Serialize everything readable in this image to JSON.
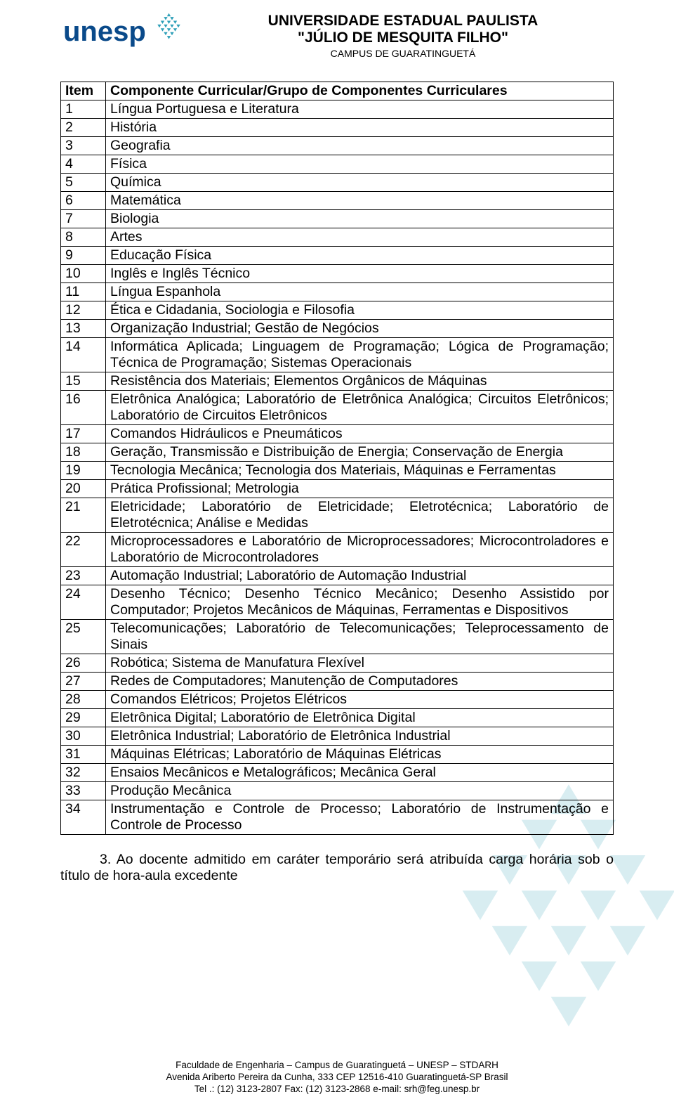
{
  "header": {
    "line1": "UNIVERSIDADE ESTADUAL PAULISTA",
    "line2": "\"JÚLIO DE MESQUITA FILHO\"",
    "line3": "CAMPUS DE GUARATINGUETÁ",
    "logo_text": "unesp",
    "logo_color": "#0a4a8a",
    "logo_accent": "#2d9fb8"
  },
  "table": {
    "header_item": "Item",
    "header_desc": "Componente Curricular/Grupo de Componentes Curriculares",
    "rows": [
      {
        "n": "1",
        "d": "Língua Portuguesa e Literatura"
      },
      {
        "n": "2",
        "d": "História"
      },
      {
        "n": "3",
        "d": "Geografia"
      },
      {
        "n": "4",
        "d": "Física"
      },
      {
        "n": "5",
        "d": "Química"
      },
      {
        "n": "6",
        "d": "Matemática"
      },
      {
        "n": "7",
        "d": "Biologia"
      },
      {
        "n": "8",
        "d": "Artes"
      },
      {
        "n": "9",
        "d": "Educação Física"
      },
      {
        "n": "10",
        "d": "Inglês e Inglês Técnico"
      },
      {
        "n": "11",
        "d": "Língua Espanhola"
      },
      {
        "n": "12",
        "d": "Ética e Cidadania, Sociologia e Filosofia"
      },
      {
        "n": "13",
        "d": "Organização Industrial; Gestão de Negócios"
      },
      {
        "n": "14",
        "d": "Informática Aplicada; Linguagem de Programação; Lógica de Programação; Técnica de Programação; Sistemas Operacionais"
      },
      {
        "n": "15",
        "d": "Resistência dos Materiais; Elementos Orgânicos de Máquinas"
      },
      {
        "n": "16",
        "d": "Eletrônica Analógica; Laboratório de Eletrônica Analógica; Circuitos Eletrônicos; Laboratório de Circuitos Eletrônicos"
      },
      {
        "n": "17",
        "d": "Comandos Hidráulicos e Pneumáticos"
      },
      {
        "n": "18",
        "d": "Geração, Transmissão e Distribuição de Energia; Conservação de Energia"
      },
      {
        "n": "19",
        "d": "Tecnologia Mecânica; Tecnologia dos Materiais, Máquinas e Ferramentas"
      },
      {
        "n": "20",
        "d": "Prática Profissional; Metrologia"
      },
      {
        "n": "21",
        "d": "Eletricidade; Laboratório de Eletricidade; Eletrotécnica; Laboratório de Eletrotécnica; Análise e Medidas"
      },
      {
        "n": "22",
        "d": "Microprocessadores e Laboratório de Microprocessadores; Microcontroladores e Laboratório de Microcontroladores"
      },
      {
        "n": "23",
        "d": "Automação Industrial; Laboratório de Automação Industrial"
      },
      {
        "n": "24",
        "d": "Desenho Técnico; Desenho Técnico Mecânico; Desenho Assistido por Computador; Projetos Mecânicos de Máquinas, Ferramentas e Dispositivos"
      },
      {
        "n": "25",
        "d": "Telecomunicações; Laboratório de Telecomunicações; Teleprocessamento de Sinais"
      },
      {
        "n": "26",
        "d": "Robótica; Sistema de Manufatura Flexível"
      },
      {
        "n": "27",
        "d": "Redes de Computadores; Manutenção de Computadores"
      },
      {
        "n": "28",
        "d": "Comandos Elétricos; Projetos Elétricos"
      },
      {
        "n": "29",
        "d": "Eletrônica Digital; Laboratório de Eletrônica Digital"
      },
      {
        "n": "30",
        "d": "Eletrônica Industrial; Laboratório de Eletrônica Industrial"
      },
      {
        "n": "31",
        "d": "Máquinas Elétricas; Laboratório de Máquinas Elétricas"
      },
      {
        "n": "32",
        "d": "Ensaios Mecânicos e Metalográficos; Mecânica Geral"
      },
      {
        "n": "33",
        "d": "Produção Mecânica"
      },
      {
        "n": "34",
        "d": "Instrumentação e Controle de Processo; Laboratório de Instrumentação e Controle de Processo"
      }
    ]
  },
  "paragraph": "3. Ao docente admitido em caráter temporário será atribuída carga horária sob o título de hora-aula excedente",
  "footer": {
    "l1": "Faculdade de Engenharia – Campus de Guaratinguetá – UNESP –  STDARH",
    "l2": "Avenida Ariberto Pereira da Cunha, 333      CEP 12516-410      Guaratinguetá-SP      Brasil",
    "l3": "Tel .: (12)  3123-2807       Fax: (12) 3123-2868     e-mail: srh@feg.unesp.br"
  },
  "colors": {
    "text": "#000000",
    "border": "#000000",
    "bg": "#ffffff",
    "watermark": "#2d9fb8"
  }
}
